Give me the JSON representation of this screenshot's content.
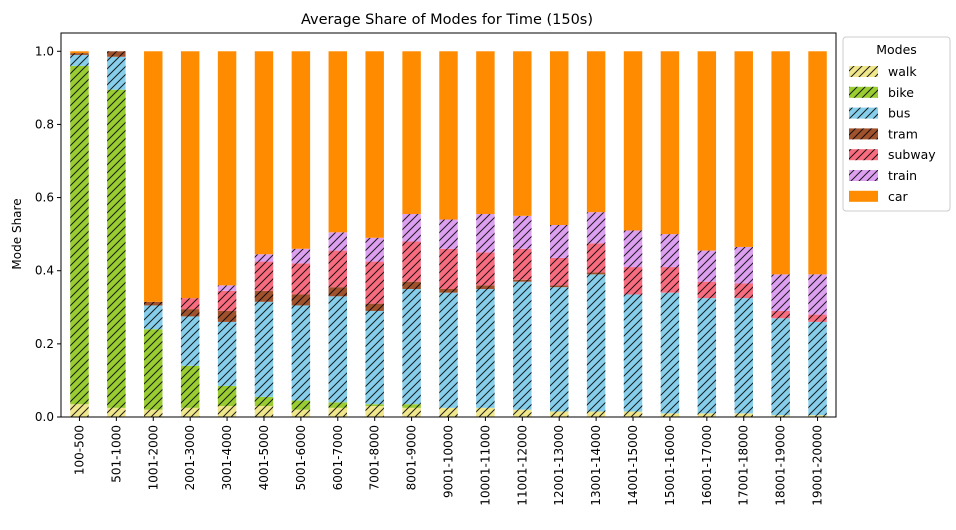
{
  "chart_data": {
    "type": "bar",
    "stacked": true,
    "title": "Average Share of Modes for Time (150s)",
    "xlabel": "",
    "ylabel": "Mode Share",
    "ylim": [
      0,
      1.05
    ],
    "yticks": [
      "0.0",
      "0.2",
      "0.4",
      "0.6",
      "0.8",
      "1.0"
    ],
    "grid": false,
    "legend": {
      "title": "Modes",
      "placement": "outside-top-right"
    },
    "categories": [
      "100-500",
      "501-1000",
      "1001-2000",
      "2001-3000",
      "3001-4000",
      "4001-5000",
      "5001-6000",
      "6001-7000",
      "7001-8000",
      "8001-9000",
      "9001-10000",
      "10001-11000",
      "11001-12000",
      "12001-13000",
      "13001-14000",
      "14001-15000",
      "15001-16000",
      "16001-17000",
      "17001-18000",
      "18001-19000",
      "19001-20000"
    ],
    "series": [
      {
        "name": "walk",
        "color": "#f0e68c",
        "hatch": true,
        "values": [
          0.035,
          0.025,
          0.02,
          0.025,
          0.03,
          0.03,
          0.02,
          0.025,
          0.03,
          0.025,
          0.025,
          0.025,
          0.02,
          0.015,
          0.015,
          0.015,
          0.01,
          0.01,
          0.01,
          0.005,
          0.005
        ]
      },
      {
        "name": "bike",
        "color": "#9acd32",
        "hatch": true,
        "values": [
          0.925,
          0.87,
          0.22,
          0.115,
          0.055,
          0.025,
          0.025,
          0.015,
          0.005,
          0.01,
          0.0,
          0.0,
          0.0,
          0.0,
          0.0,
          0.0,
          0.0,
          0.0,
          0.0,
          0.0,
          0.0
        ]
      },
      {
        "name": "bus",
        "color": "#87ceeb",
        "hatch": true,
        "values": [
          0.03,
          0.09,
          0.065,
          0.135,
          0.175,
          0.26,
          0.26,
          0.29,
          0.255,
          0.315,
          0.315,
          0.325,
          0.35,
          0.34,
          0.375,
          0.32,
          0.33,
          0.315,
          0.315,
          0.265,
          0.255
        ]
      },
      {
        "name": "tram",
        "color": "#a0522d",
        "hatch": true,
        "values": [
          0.005,
          0.015,
          0.01,
          0.02,
          0.03,
          0.03,
          0.03,
          0.025,
          0.02,
          0.02,
          0.01,
          0.01,
          0.005,
          0.005,
          0.005,
          0.0,
          0.0,
          0.0,
          0.0,
          0.0,
          0.0
        ]
      },
      {
        "name": "subway",
        "color": "#f76d7f",
        "hatch": true,
        "values": [
          0.0,
          0.0,
          0.0,
          0.03,
          0.055,
          0.08,
          0.085,
          0.1,
          0.115,
          0.11,
          0.11,
          0.09,
          0.085,
          0.075,
          0.08,
          0.075,
          0.07,
          0.045,
          0.04,
          0.02,
          0.02
        ]
      },
      {
        "name": "train",
        "color": "#dda0f0",
        "hatch": true,
        "values": [
          0.0,
          0.0,
          0.0,
          0.0,
          0.015,
          0.02,
          0.04,
          0.05,
          0.065,
          0.075,
          0.08,
          0.105,
          0.09,
          0.09,
          0.085,
          0.1,
          0.09,
          0.085,
          0.1,
          0.1,
          0.11
        ]
      },
      {
        "name": "car",
        "color": "#ff8c00",
        "hatch": false,
        "values": [
          0.005,
          0.0,
          0.685,
          0.675,
          0.64,
          0.555,
          0.54,
          0.495,
          0.51,
          0.445,
          0.46,
          0.445,
          0.45,
          0.475,
          0.44,
          0.49,
          0.5,
          0.545,
          0.535,
          0.61,
          0.61
        ]
      }
    ]
  }
}
